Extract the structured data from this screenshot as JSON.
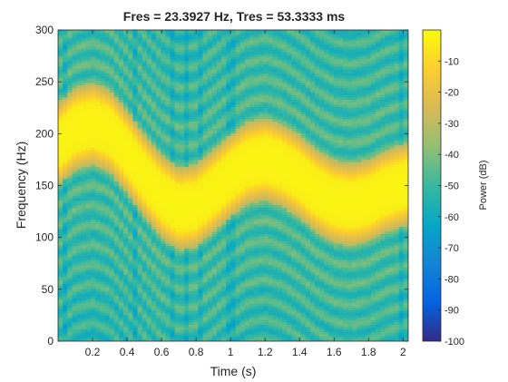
{
  "chart_data": {
    "type": "heatmap",
    "title": "Fres = 23.3927 Hz, Tres = 53.3333 ms",
    "xlabel": "Time (s)",
    "ylabel": "Frequency (Hz)",
    "colorbar_label": "Power (dB)",
    "xlim": [
      0,
      2.03
    ],
    "ylim": [
      0,
      300
    ],
    "clim": [
      -100,
      0
    ],
    "xticks": [
      0.2,
      0.4,
      0.6,
      0.8,
      1,
      1.2,
      1.4,
      1.6,
      1.8,
      2
    ],
    "xtick_labels": [
      "0.2",
      "0.4",
      "0.6",
      "0.8",
      "1",
      "1.2",
      "1.4",
      "1.6",
      "1.8",
      "2"
    ],
    "yticks": [
      0,
      50,
      100,
      150,
      200,
      250,
      300
    ],
    "ytick_labels": [
      "0",
      "50",
      "100",
      "150",
      "200",
      "250",
      "300"
    ],
    "cticks": [
      -100,
      -90,
      -80,
      -70,
      -60,
      -50,
      -40,
      -30,
      -20,
      -10
    ],
    "ctick_labels": [
      "-100",
      "-90",
      "-80",
      "-70",
      "-60",
      "-50",
      "-40",
      "-30",
      "-20",
      "-10"
    ],
    "colormap": "parula",
    "colormap_stops": [
      "#352a87",
      "#0363e1",
      "#1485d4",
      "#06a7c6",
      "#38b99e",
      "#92bf73",
      "#d9ba56",
      "#fcce2e",
      "#f9fb0e"
    ],
    "signal": {
      "description": "chirp ridge of peak power",
      "time": [
        0.0,
        0.1,
        0.2,
        0.3,
        0.4,
        0.5,
        0.6,
        0.7,
        0.8,
        0.9,
        1.0,
        1.1,
        1.2,
        1.3,
        1.4,
        1.5,
        1.6,
        1.7,
        1.8,
        1.9,
        2.03
      ],
      "center_freq_hz": [
        190,
        205,
        210,
        203,
        183,
        160,
        140,
        128,
        131,
        145,
        160,
        172,
        176,
        170,
        159,
        145,
        135,
        132,
        136,
        145,
        152
      ],
      "peak_power_db": -2
    }
  }
}
